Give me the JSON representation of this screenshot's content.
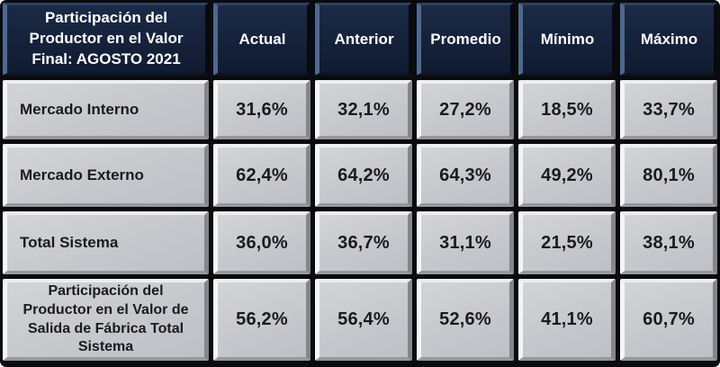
{
  "table": {
    "corner_title": "Participación del Productor en el Valor Final: AGOSTO 2021",
    "columns": [
      "Actual",
      "Anterior",
      "Promedio",
      "Mínimo",
      "Máximo"
    ],
    "rows": [
      {
        "label": "Mercado Interno",
        "values": [
          "31,6%",
          "32,1%",
          "27,2%",
          "18,5%",
          "33,7%"
        ]
      },
      {
        "label": "Mercado Externo",
        "values": [
          "62,4%",
          "64,2%",
          "64,3%",
          "49,2%",
          "80,1%"
        ]
      },
      {
        "label": "Total Sistema",
        "values": [
          "36,0%",
          "36,7%",
          "31,1%",
          "21,5%",
          "38,1%"
        ]
      },
      {
        "label": "Participación del Productor en el Valor de Salida de Fábrica Total Sistema",
        "values": [
          "56,2%",
          "56,4%",
          "52,6%",
          "41,1%",
          "60,7%"
        ]
      }
    ],
    "colors": {
      "header_bg": "#16233c",
      "header_bevel_light": "#4e6890",
      "cell_bg": "#c7c9cd",
      "header_text": "#ffffff",
      "cell_text": "#1a1b1e",
      "frame": "#0a0b0d"
    }
  },
  "chart_data": {
    "type": "table",
    "title": "Participación del Productor en el Valor Final: AGOSTO 2021",
    "columns": [
      "Actual",
      "Anterior",
      "Promedio",
      "Mínimo",
      "Máximo"
    ],
    "row_labels": [
      "Mercado Interno",
      "Mercado Externo",
      "Total Sistema",
      "Participación del Productor en el Valor de Salida de Fábrica Total Sistema"
    ],
    "values_percent": [
      [
        31.6,
        32.1,
        27.2,
        18.5,
        33.7
      ],
      [
        62.4,
        64.2,
        64.3,
        49.2,
        80.1
      ],
      [
        36.0,
        36.7,
        31.1,
        21.5,
        38.1
      ],
      [
        56.2,
        56.4,
        52.6,
        41.1,
        60.7
      ]
    ]
  }
}
